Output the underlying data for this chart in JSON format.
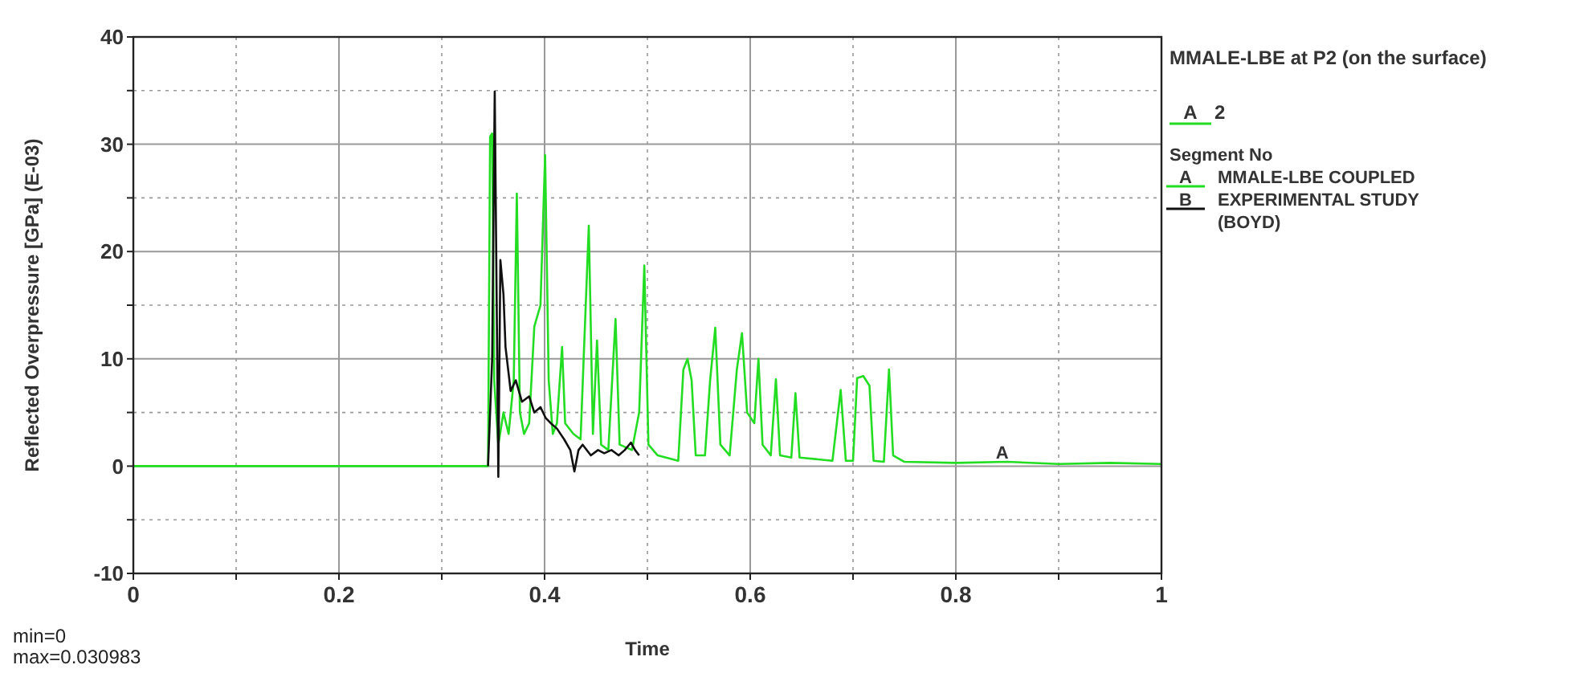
{
  "chart_data": {
    "type": "line",
    "xlabel": "Time",
    "ylabel": "Reflected Overpressure [GPa] (E-03)",
    "legend_title": "MMALE-LBE at P2 (on the surface)",
    "legend": "right",
    "grid": true,
    "line_style": "solid",
    "xlim": [
      0,
      1
    ],
    "ylim": [
      -10,
      40
    ],
    "xticks": [
      0,
      {
        "value": 0.1,
        "label": null
      },
      0.2,
      {
        "value": 0.3,
        "label": null
      },
      0.4,
      {
        "value": 0.5,
        "label": null
      },
      0.6,
      {
        "value": 0.7,
        "label": null
      },
      0.8,
      {
        "value": 0.9,
        "label": null
      },
      1
    ],
    "yticks": [
      -10,
      {
        "value": -5,
        "label": null
      },
      0,
      {
        "value": 5,
        "label": null
      },
      10,
      {
        "value": 15,
        "label": null
      },
      20,
      {
        "value": 25,
        "label": null
      },
      30,
      {
        "value": 35,
        "label": null
      },
      40
    ],
    "series": [
      {
        "name": "MMALE-LBE COUPLED",
        "color": "#22dd22",
        "x": [
          0,
          0.345,
          0.347,
          0.349,
          0.351,
          0.355,
          0.36,
          0.365,
          0.37,
          0.373,
          0.376,
          0.38,
          0.385,
          0.39,
          0.396,
          0.4005,
          0.404,
          0.408,
          0.412,
          0.417,
          0.42,
          0.428,
          0.435,
          0.438,
          0.443,
          0.447,
          0.451,
          0.455,
          0.462,
          0.469,
          0.473,
          0.485,
          0.492,
          0.497,
          0.501,
          0.51,
          0.53,
          0.535,
          0.539,
          0.543,
          0.547,
          0.556,
          0.561,
          0.566,
          0.571,
          0.58,
          0.587,
          0.592,
          0.597,
          0.604,
          0.608,
          0.612,
          0.62,
          0.625,
          0.629,
          0.64,
          0.644,
          0.648,
          0.68,
          0.688,
          0.693,
          0.7,
          0.704,
          0.71,
          0.716,
          0.72,
          0.73,
          0.735,
          0.739,
          0.75,
          0.8,
          0.85,
          0.9,
          0.95,
          1
        ],
        "values": [
          0,
          0,
          30.7,
          31,
          8,
          2,
          5,
          3,
          8,
          25.4,
          5,
          3,
          4,
          13,
          15,
          29,
          8,
          3,
          4,
          11.1,
          4,
          3,
          2.5,
          10,
          22.4,
          3,
          11.7,
          2,
          1.5,
          13.7,
          2,
          1.5,
          5,
          18.7,
          2,
          1,
          0.5,
          9,
          10,
          8,
          1,
          1,
          8,
          12.9,
          2,
          1,
          9,
          12.4,
          5,
          4,
          10,
          2,
          1,
          8.1,
          1,
          0.8,
          6.8,
          0.8,
          0.5,
          7.1,
          0.5,
          0.5,
          8.2,
          8.4,
          7.5,
          0.5,
          0.4,
          9,
          1,
          0.4,
          0.3,
          0.4,
          0.2,
          0.3,
          0.2
        ]
      },
      {
        "name": "EXPERIMENTAL STUDY (BOYD)",
        "color": "#111111",
        "x": [
          0.345,
          0.349,
          0.3515,
          0.355,
          0.357,
          0.36,
          0.362,
          0.367,
          0.372,
          0.378,
          0.385,
          0.39,
          0.396,
          0.401,
          0.406,
          0.412,
          0.419,
          0.425,
          0.429,
          0.433,
          0.437,
          0.445,
          0.452,
          0.458,
          0.465,
          0.472,
          0.478,
          0.484,
          0.488,
          0.492
        ],
        "values": [
          0,
          10,
          34.9,
          -1,
          19.2,
          16,
          11.1,
          7,
          8,
          6,
          6.5,
          5,
          5.5,
          4.5,
          4,
          3.5,
          2.5,
          1.5,
          -0.5,
          1.5,
          2,
          1,
          1.5,
          1.2,
          1.5,
          1,
          1.5,
          2.2,
          1.5,
          1
        ]
      }
    ],
    "annotations": [
      {
        "text": "A",
        "x": 0.845,
        "y": 0.4
      },
      "A",
      "2",
      "Segment No",
      "A",
      "B",
      "min=0",
      "max=0.030983"
    ]
  }
}
